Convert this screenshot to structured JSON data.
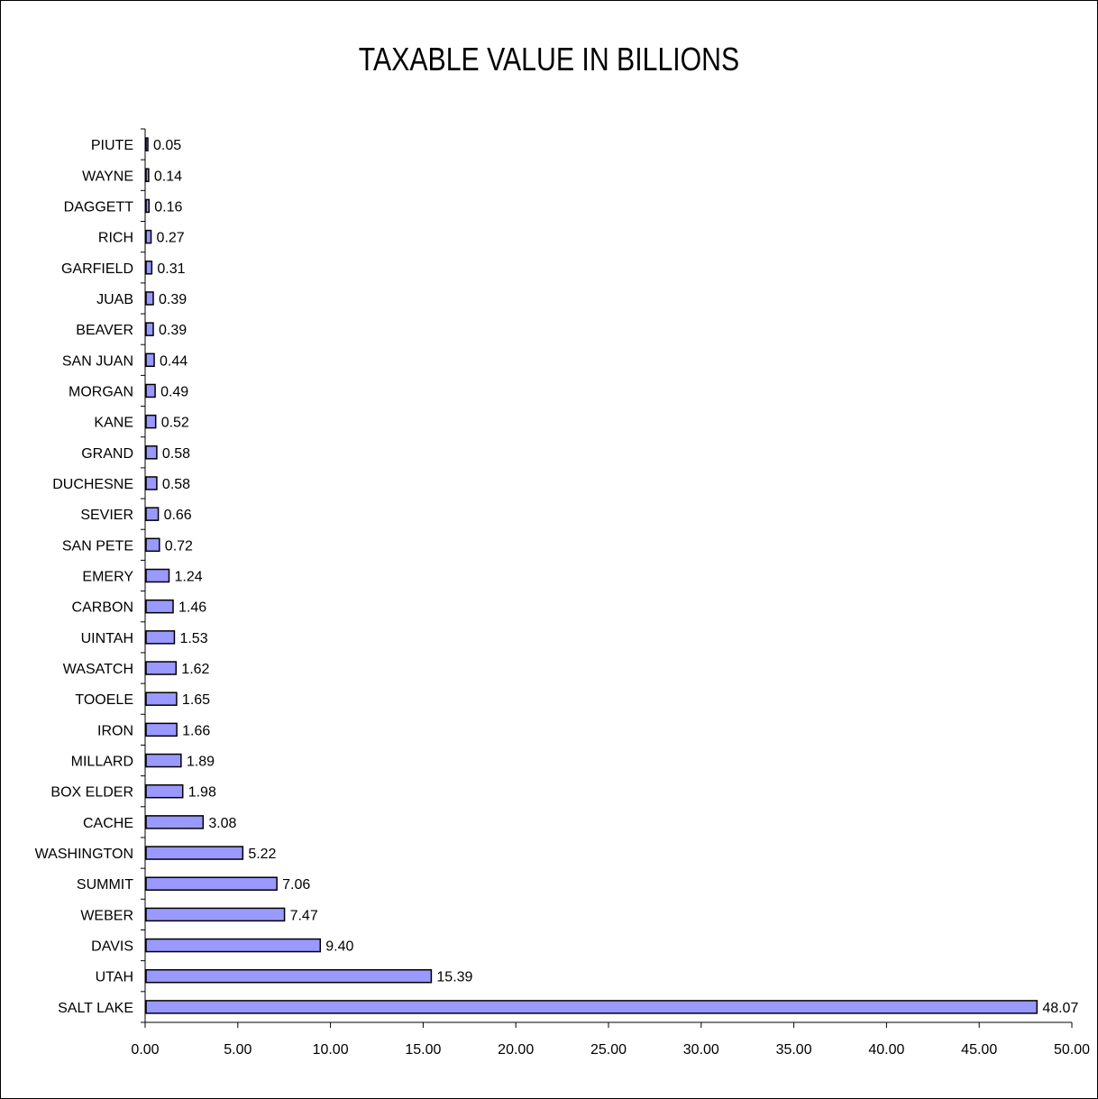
{
  "chart_data": {
    "type": "bar",
    "orientation": "horizontal",
    "title": "TAXABLE VALUE IN BILLIONS",
    "categories": [
      "PIUTE",
      "WAYNE",
      "DAGGETT",
      "RICH",
      "GARFIELD",
      "JUAB",
      "BEAVER",
      "SAN JUAN",
      "MORGAN",
      "KANE",
      "GRAND",
      "DUCHESNE",
      "SEVIER",
      "SAN PETE",
      "EMERY",
      "CARBON",
      "UINTAH",
      "WASATCH",
      "TOOELE",
      "IRON",
      "MILLARD",
      "BOX ELDER",
      "CACHE",
      "WASHINGTON",
      "SUMMIT",
      "WEBER",
      "DAVIS",
      "UTAH",
      "SALT LAKE"
    ],
    "values": [
      0.05,
      0.14,
      0.16,
      0.27,
      0.31,
      0.39,
      0.39,
      0.44,
      0.49,
      0.52,
      0.58,
      0.58,
      0.66,
      0.72,
      1.24,
      1.46,
      1.53,
      1.62,
      1.65,
      1.66,
      1.89,
      1.98,
      3.08,
      5.22,
      7.06,
      7.47,
      9.4,
      15.39,
      48.07
    ],
    "value_labels": [
      "0.05",
      "0.14",
      "0.16",
      "0.27",
      "0.31",
      "0.39",
      "0.39",
      "0.44",
      "0.49",
      "0.52",
      "0.58",
      "0.58",
      "0.66",
      "0.72",
      "1.24",
      "1.46",
      "1.53",
      "1.62",
      "1.65",
      "1.66",
      "1.89",
      "1.98",
      "3.08",
      "5.22",
      "7.06",
      "7.47",
      "9.40",
      "15.39",
      "48.07"
    ],
    "xlim": [
      0,
      50
    ],
    "x_ticks": [
      "0.00",
      "5.00",
      "10.00",
      "15.00",
      "20.00",
      "25.00",
      "30.00",
      "35.00",
      "40.00",
      "45.00",
      "50.00"
    ],
    "xlabel": "",
    "ylabel": "",
    "grid": false,
    "legend": "none",
    "bar_color": "#9999ff",
    "bar_edge_color": "#000000"
  }
}
